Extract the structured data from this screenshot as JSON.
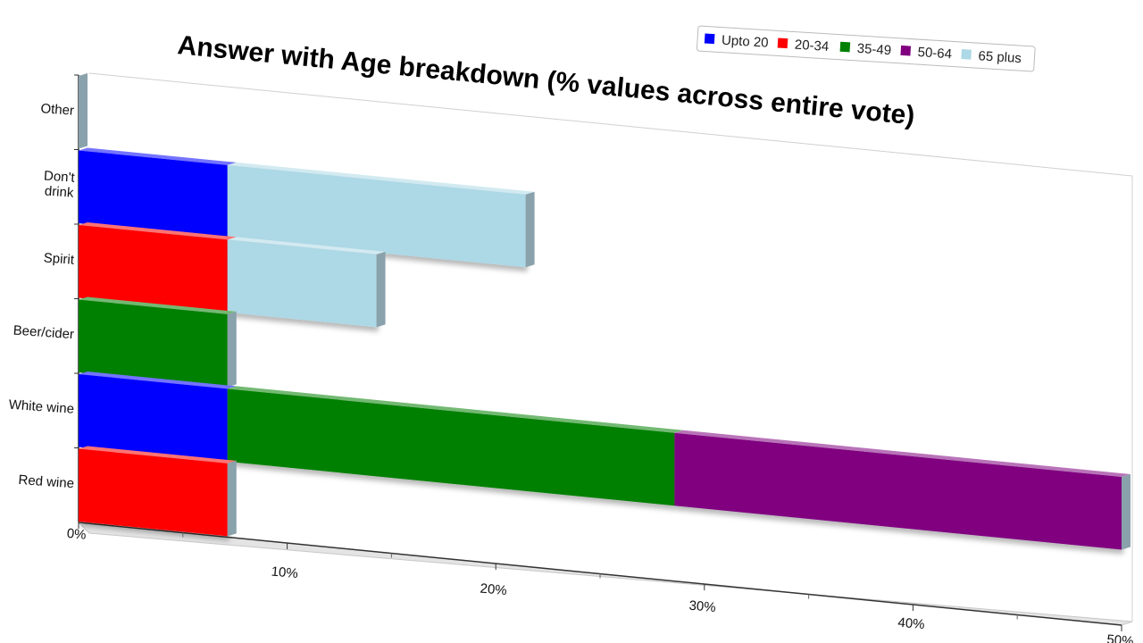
{
  "chart_data": {
    "type": "bar",
    "orientation": "horizontal",
    "stacked": true,
    "title": "Answer with Age breakdown (% values across entire vote)",
    "xlabel": "",
    "ylabel": "",
    "xlim": [
      0,
      50
    ],
    "x_ticks": [
      "0%",
      "10%",
      "20%",
      "30%",
      "40%",
      "50%"
    ],
    "categories": [
      "Other",
      "Don't drink",
      "Spirit",
      "Beer/cider",
      "White wine",
      "Red wine"
    ],
    "category_lines": [
      [
        "Other"
      ],
      [
        "Don't",
        "drink"
      ],
      [
        "Spirit"
      ],
      [
        "Beer/cider"
      ],
      [
        "White wine"
      ],
      [
        "Red wine"
      ]
    ],
    "series": [
      {
        "name": "Upto 20",
        "color": "#0000ff",
        "values": [
          0,
          7.14,
          0,
          0,
          7.14,
          0
        ]
      },
      {
        "name": "20-34",
        "color": "#ff0000",
        "values": [
          0,
          0,
          7.14,
          0,
          0,
          7.14
        ]
      },
      {
        "name": "35-49",
        "color": "#008000",
        "values": [
          0,
          0,
          0,
          7.14,
          21.43,
          0
        ]
      },
      {
        "name": "50-64",
        "color": "#800080",
        "values": [
          0,
          0,
          0,
          0,
          21.43,
          0
        ]
      },
      {
        "name": "65 plus",
        "color": "#add8e6",
        "values": [
          0,
          14.29,
          7.14,
          0,
          0,
          0
        ]
      }
    ],
    "legend_position": "top-right",
    "grid": false,
    "view": "3d-perspective"
  }
}
